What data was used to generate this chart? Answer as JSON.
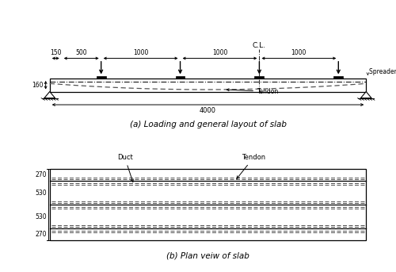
{
  "title_a": "(a) Loading and general layout of slab",
  "title_b": "(b) Plan veiw of slab",
  "cl_label": "C.L.",
  "spreader_label": "Spreader plate",
  "tendon_label_a": "Tendon",
  "tendon_label_b": "Tendon",
  "duct_label": "Duct",
  "dim_150": "150",
  "dim_500": "500",
  "dim_1000a": "1000",
  "dim_1000b": "1000",
  "dim_1000c": "1000",
  "dim_4000": "4000",
  "dim_160": "160",
  "dim_270a": "270",
  "dim_530a": "530",
  "dim_530b": "530",
  "dim_270b": "270",
  "bg_color": "#ffffff",
  "line_color": "#000000"
}
